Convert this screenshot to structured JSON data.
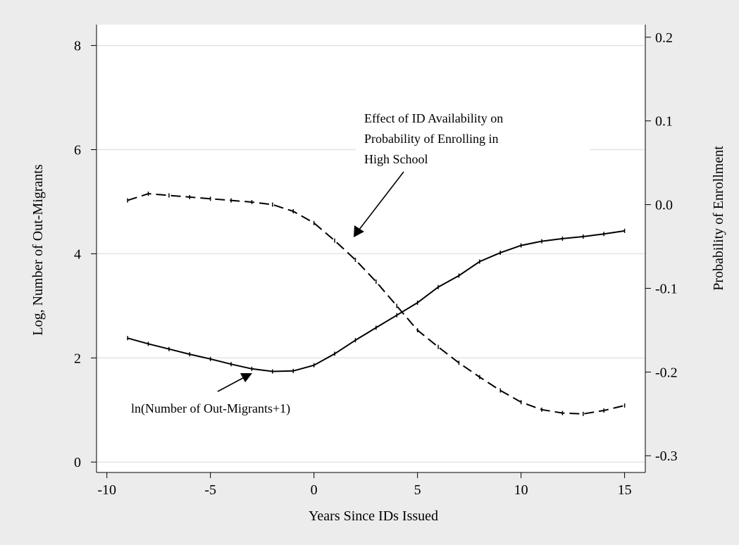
{
  "chart_data": {
    "type": "line",
    "xlabel": "Years Since IDs Issued",
    "ylabel_left": "Log, Number of Out-Migrants",
    "ylabel_right": "Probability of Enrollment",
    "xlim": [
      -10.5,
      16
    ],
    "ylim_left": [
      -0.2,
      8.4
    ],
    "ylim_right": [
      -0.32,
      0.215
    ],
    "x_ticks": [
      -10,
      -5,
      0,
      5,
      10,
      15
    ],
    "x_tick_labels": [
      "-10",
      "-5",
      "0",
      "5",
      "10",
      "15"
    ],
    "y_left_ticks": [
      0,
      2,
      4,
      6,
      8
    ],
    "y_left_tick_labels": [
      "0",
      "2",
      "4",
      "6",
      "8"
    ],
    "y_right_ticks": [
      -0.3,
      -0.2,
      -0.1,
      0.0,
      0.1,
      0.2
    ],
    "y_right_tick_labels": [
      "-0.3",
      "-0.2",
      "-0.1",
      "0.0",
      "0.1",
      "0.2"
    ],
    "grid": true,
    "series": [
      {
        "axis": "left",
        "style": "solid",
        "x": [
          -9,
          -8,
          -7,
          -6,
          -5,
          -4,
          -3,
          -2,
          -1,
          0,
          1,
          2,
          3,
          4,
          5,
          6,
          7,
          8,
          9,
          10,
          11,
          12,
          13,
          14,
          15
        ],
        "y": [
          2.38,
          2.27,
          2.17,
          2.07,
          1.98,
          1.88,
          1.79,
          1.74,
          1.75,
          1.86,
          2.08,
          2.34,
          2.58,
          2.82,
          3.06,
          3.36,
          3.58,
          3.85,
          4.02,
          4.16,
          4.24,
          4.29,
          4.33,
          4.38,
          4.44
        ]
      },
      {
        "axis": "right",
        "style": "dashed",
        "x": [
          -9,
          -8,
          -7,
          -6,
          -5,
          -4,
          -3,
          -2,
          -1,
          0,
          1,
          2,
          3,
          4,
          5,
          6,
          7,
          8,
          9,
          10,
          11,
          12,
          13,
          14,
          15
        ],
        "y": [
          0.005,
          0.013,
          0.011,
          0.009,
          0.007,
          0.005,
          0.003,
          0.0,
          -0.008,
          -0.022,
          -0.043,
          -0.066,
          -0.092,
          -0.121,
          -0.15,
          -0.17,
          -0.189,
          -0.206,
          -0.222,
          -0.236,
          -0.245,
          -0.249,
          -0.25,
          -0.246,
          -0.24
        ]
      }
    ],
    "annotations": [
      {
        "lines": [
          "Effect of ID Availability on",
          "Probability of Enrolling in",
          "High School"
        ]
      },
      {
        "lines": [
          "ln(Number of Out-Migrants+1)"
        ]
      }
    ]
  }
}
